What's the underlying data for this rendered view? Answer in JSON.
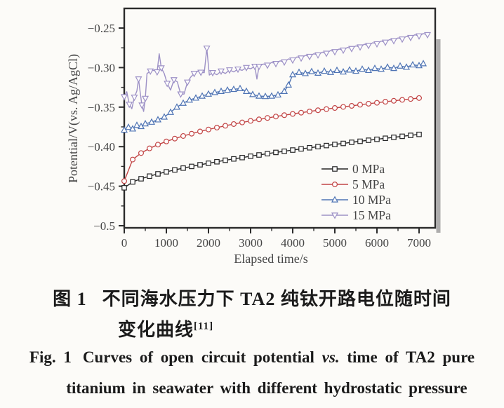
{
  "figure": {
    "background": "#fcfbf8"
  },
  "chart_data": {
    "type": "line",
    "title": "",
    "xlabel": "Elapsed time/s",
    "ylabel": "Potential/V(vs. Ag/AgCl)",
    "xlim": [
      0,
      7383
    ],
    "ylim": [
      -0.5,
      -0.225
    ],
    "grid": false,
    "legend_position": "inside-bottom-right",
    "frame_color": "#2b2b2b",
    "text_color": "#454545",
    "x_ticks": [
      0,
      1000,
      2000,
      3000,
      4000,
      5000,
      6000,
      7000
    ],
    "x_tick_labels": [
      "0",
      "1000",
      "2000",
      "3000",
      "4000",
      "5000",
      "6000",
      "7000"
    ],
    "x_minor_ticks": [
      500,
      1500,
      2500,
      3500,
      4500,
      5500,
      6500
    ],
    "y_ticks": [
      -0.25,
      -0.3,
      -0.35,
      -0.4,
      -0.45,
      -0.5
    ],
    "y_tick_labels": [
      "−0.25",
      "−0.30",
      "−0.35",
      "−0.40",
      "−0.45",
      "−0.5"
    ],
    "y_minor_ticks": [
      -0.275,
      -0.325,
      -0.375,
      -0.425,
      -0.475
    ],
    "series": [
      {
        "name": "0 MPa",
        "color": "#262626",
        "marker": "square",
        "marker_every": 1,
        "points": [
          [
            0,
            -0.452
          ],
          [
            200,
            -0.4446
          ],
          [
            400,
            -0.4406
          ],
          [
            600,
            -0.4373
          ],
          [
            800,
            -0.4344
          ],
          [
            1000,
            -0.4318
          ],
          [
            1200,
            -0.4294
          ],
          [
            1400,
            -0.4271
          ],
          [
            1600,
            -0.425
          ],
          [
            1800,
            -0.4229
          ],
          [
            2000,
            -0.421
          ],
          [
            2200,
            -0.4191
          ],
          [
            2400,
            -0.4172
          ],
          [
            2600,
            -0.4155
          ],
          [
            2800,
            -0.4138
          ],
          [
            3000,
            -0.4121
          ],
          [
            3200,
            -0.4105
          ],
          [
            3400,
            -0.4089
          ],
          [
            3600,
            -0.4073
          ],
          [
            3800,
            -0.4058
          ],
          [
            4000,
            -0.4043
          ],
          [
            4200,
            -0.4028
          ],
          [
            4400,
            -0.4014
          ],
          [
            4600,
            -0.4
          ],
          [
            4800,
            -0.3986
          ],
          [
            5000,
            -0.3972
          ],
          [
            5200,
            -0.3959
          ],
          [
            5400,
            -0.3945
          ],
          [
            5600,
            -0.3932
          ],
          [
            5800,
            -0.3919
          ],
          [
            6000,
            -0.3907
          ],
          [
            6200,
            -0.3894
          ],
          [
            6400,
            -0.3882
          ],
          [
            6600,
            -0.3869
          ],
          [
            6800,
            -0.3857
          ],
          [
            7000,
            -0.3845
          ]
        ]
      },
      {
        "name": "5 MPa",
        "color": "#c24545",
        "marker": "circle",
        "marker_every": 1,
        "points": [
          [
            0,
            -0.4435
          ],
          [
            200,
            -0.4163
          ],
          [
            400,
            -0.4081
          ],
          [
            600,
            -0.4022
          ],
          [
            800,
            -0.3974
          ],
          [
            1000,
            -0.3934
          ],
          [
            1200,
            -0.3898
          ],
          [
            1400,
            -0.3865
          ],
          [
            1600,
            -0.3836
          ],
          [
            1800,
            -0.3808
          ],
          [
            2000,
            -0.3783
          ],
          [
            2200,
            -0.3759
          ],
          [
            2400,
            -0.3736
          ],
          [
            2600,
            -0.3714
          ],
          [
            2800,
            -0.3694
          ],
          [
            3000,
            -0.3674
          ],
          [
            3200,
            -0.3655
          ],
          [
            3400,
            -0.3637
          ],
          [
            3600,
            -0.3619
          ],
          [
            3800,
            -0.3602
          ],
          [
            4000,
            -0.3586
          ],
          [
            4200,
            -0.357
          ],
          [
            4400,
            -0.3555
          ],
          [
            4600,
            -0.354
          ],
          [
            4800,
            -0.3525
          ],
          [
            5000,
            -0.3511
          ],
          [
            5200,
            -0.3497
          ],
          [
            5400,
            -0.3484
          ],
          [
            5600,
            -0.347
          ],
          [
            5800,
            -0.3457
          ],
          [
            6000,
            -0.3445
          ],
          [
            6200,
            -0.3432
          ],
          [
            6400,
            -0.342
          ],
          [
            6600,
            -0.3408
          ],
          [
            6800,
            -0.3397
          ],
          [
            7000,
            -0.3385
          ]
        ]
      },
      {
        "name": "10 MPa",
        "color": "#4f74b4",
        "marker": "triangle-up",
        "marker_every": 1,
        "points": [
          [
            0,
            -0.379
          ],
          [
            100,
            -0.3755
          ],
          [
            200,
            -0.3775
          ],
          [
            300,
            -0.373
          ],
          [
            400,
            -0.3745
          ],
          [
            500,
            -0.371
          ],
          [
            650,
            -0.369
          ],
          [
            800,
            -0.366
          ],
          [
            950,
            -0.3625
          ],
          [
            1100,
            -0.3565
          ],
          [
            1250,
            -0.35
          ],
          [
            1400,
            -0.345
          ],
          [
            1550,
            -0.341
          ],
          [
            1700,
            -0.3385
          ],
          [
            1850,
            -0.336
          ],
          [
            2000,
            -0.3335
          ],
          [
            2150,
            -0.3315
          ],
          [
            2300,
            -0.33
          ],
          [
            2450,
            -0.3285
          ],
          [
            2600,
            -0.3275
          ],
          [
            2750,
            -0.3265
          ],
          [
            2900,
            -0.33
          ],
          [
            3050,
            -0.334
          ],
          [
            3200,
            -0.336
          ],
          [
            3350,
            -0.3365
          ],
          [
            3500,
            -0.336
          ],
          [
            3650,
            -0.3345
          ],
          [
            3800,
            -0.33
          ],
          [
            3900,
            -0.322
          ],
          [
            4000,
            -0.309
          ],
          [
            4150,
            -0.306
          ],
          [
            4300,
            -0.3075
          ],
          [
            4450,
            -0.305
          ],
          [
            4600,
            -0.307
          ],
          [
            4750,
            -0.3045
          ],
          [
            4900,
            -0.306
          ],
          [
            5050,
            -0.3035
          ],
          [
            5200,
            -0.3055
          ],
          [
            5350,
            -0.303
          ],
          [
            5500,
            -0.3045
          ],
          [
            5650,
            -0.302
          ],
          [
            5800,
            -0.3035
          ],
          [
            5950,
            -0.301
          ],
          [
            6100,
            -0.302
          ],
          [
            6250,
            -0.2995
          ],
          [
            6400,
            -0.301
          ],
          [
            6550,
            -0.298
          ],
          [
            6700,
            -0.2995
          ],
          [
            6850,
            -0.2965
          ],
          [
            7000,
            -0.2975
          ],
          [
            7100,
            -0.295
          ]
        ]
      },
      {
        "name": "15 MPa",
        "color": "#9d91c6",
        "marker": "triangle-down",
        "marker_every": 2,
        "points": [
          [
            0,
            -0.337
          ],
          [
            60,
            -0.3305
          ],
          [
            120,
            -0.3465
          ],
          [
            180,
            -0.352
          ],
          [
            240,
            -0.3375
          ],
          [
            300,
            -0.3295
          ],
          [
            340,
            -0.3145
          ],
          [
            380,
            -0.332
          ],
          [
            420,
            -0.3475
          ],
          [
            460,
            -0.3555
          ],
          [
            500,
            -0.339
          ],
          [
            540,
            -0.3075
          ],
          [
            620,
            -0.3045
          ],
          [
            700,
            -0.3035
          ],
          [
            780,
            -0.3055
          ],
          [
            830,
            -0.2825
          ],
          [
            880,
            -0.3005
          ],
          [
            950,
            -0.3075
          ],
          [
            1020,
            -0.32
          ],
          [
            1100,
            -0.3285
          ],
          [
            1180,
            -0.3155
          ],
          [
            1260,
            -0.318
          ],
          [
            1340,
            -0.3335
          ],
          [
            1420,
            -0.3335
          ],
          [
            1500,
            -0.3185
          ],
          [
            1580,
            -0.312
          ],
          [
            1660,
            -0.3075
          ],
          [
            1740,
            -0.3045
          ],
          [
            1820,
            -0.306
          ],
          [
            1900,
            -0.3065
          ],
          [
            1960,
            -0.2755
          ],
          [
            2020,
            -0.3095
          ],
          [
            2100,
            -0.3065
          ],
          [
            2200,
            -0.309
          ],
          [
            2300,
            -0.3045
          ],
          [
            2400,
            -0.3075
          ],
          [
            2500,
            -0.303
          ],
          [
            2600,
            -0.3055
          ],
          [
            2700,
            -0.302
          ],
          [
            2800,
            -0.3035
          ],
          [
            2900,
            -0.3
          ],
          [
            3000,
            -0.3015
          ],
          [
            3100,
            -0.2985
          ],
          [
            3150,
            -0.3145
          ],
          [
            3200,
            -0.2985
          ],
          [
            3300,
            -0.2955
          ],
          [
            3400,
            -0.297
          ],
          [
            3500,
            -0.2935
          ],
          [
            3600,
            -0.295
          ],
          [
            3700,
            -0.2915
          ],
          [
            3800,
            -0.293
          ],
          [
            3900,
            -0.289
          ],
          [
            4000,
            -0.2905
          ],
          [
            4100,
            -0.2865
          ],
          [
            4200,
            -0.288
          ],
          [
            4300,
            -0.2845
          ],
          [
            4400,
            -0.286
          ],
          [
            4500,
            -0.2825
          ],
          [
            4600,
            -0.284
          ],
          [
            4700,
            -0.2805
          ],
          [
            4800,
            -0.282
          ],
          [
            4900,
            -0.2785
          ],
          [
            5000,
            -0.28
          ],
          [
            5100,
            -0.2765
          ],
          [
            5200,
            -0.278
          ],
          [
            5300,
            -0.2745
          ],
          [
            5400,
            -0.276
          ],
          [
            5500,
            -0.2725
          ],
          [
            5600,
            -0.274
          ],
          [
            5700,
            -0.2705
          ],
          [
            5800,
            -0.272
          ],
          [
            5900,
            -0.2685
          ],
          [
            6000,
            -0.27
          ],
          [
            6100,
            -0.2665
          ],
          [
            6200,
            -0.268
          ],
          [
            6300,
            -0.2645
          ],
          [
            6400,
            -0.266
          ],
          [
            6500,
            -0.2625
          ],
          [
            6600,
            -0.264
          ],
          [
            6700,
            -0.2605
          ],
          [
            6800,
            -0.262
          ],
          [
            6900,
            -0.2585
          ],
          [
            7000,
            -0.26
          ],
          [
            7100,
            -0.257
          ],
          [
            7200,
            -0.2585
          ]
        ]
      }
    ]
  },
  "caption": {
    "zh_label": "图 1",
    "zh_line1": "不同海水压力下 TA2 纯钛开路电位随时间",
    "zh_line2": "变化曲线",
    "zh_superscript": "[11]",
    "en_label": "Fig. 1",
    "en_line1_pre_vs": "Curves of open circuit potential",
    "en_vs": "vs.",
    "en_line1_post_vs": "time of TA2 pure",
    "en_line2": "titanium in seawater with different hydrostatic pressure"
  }
}
